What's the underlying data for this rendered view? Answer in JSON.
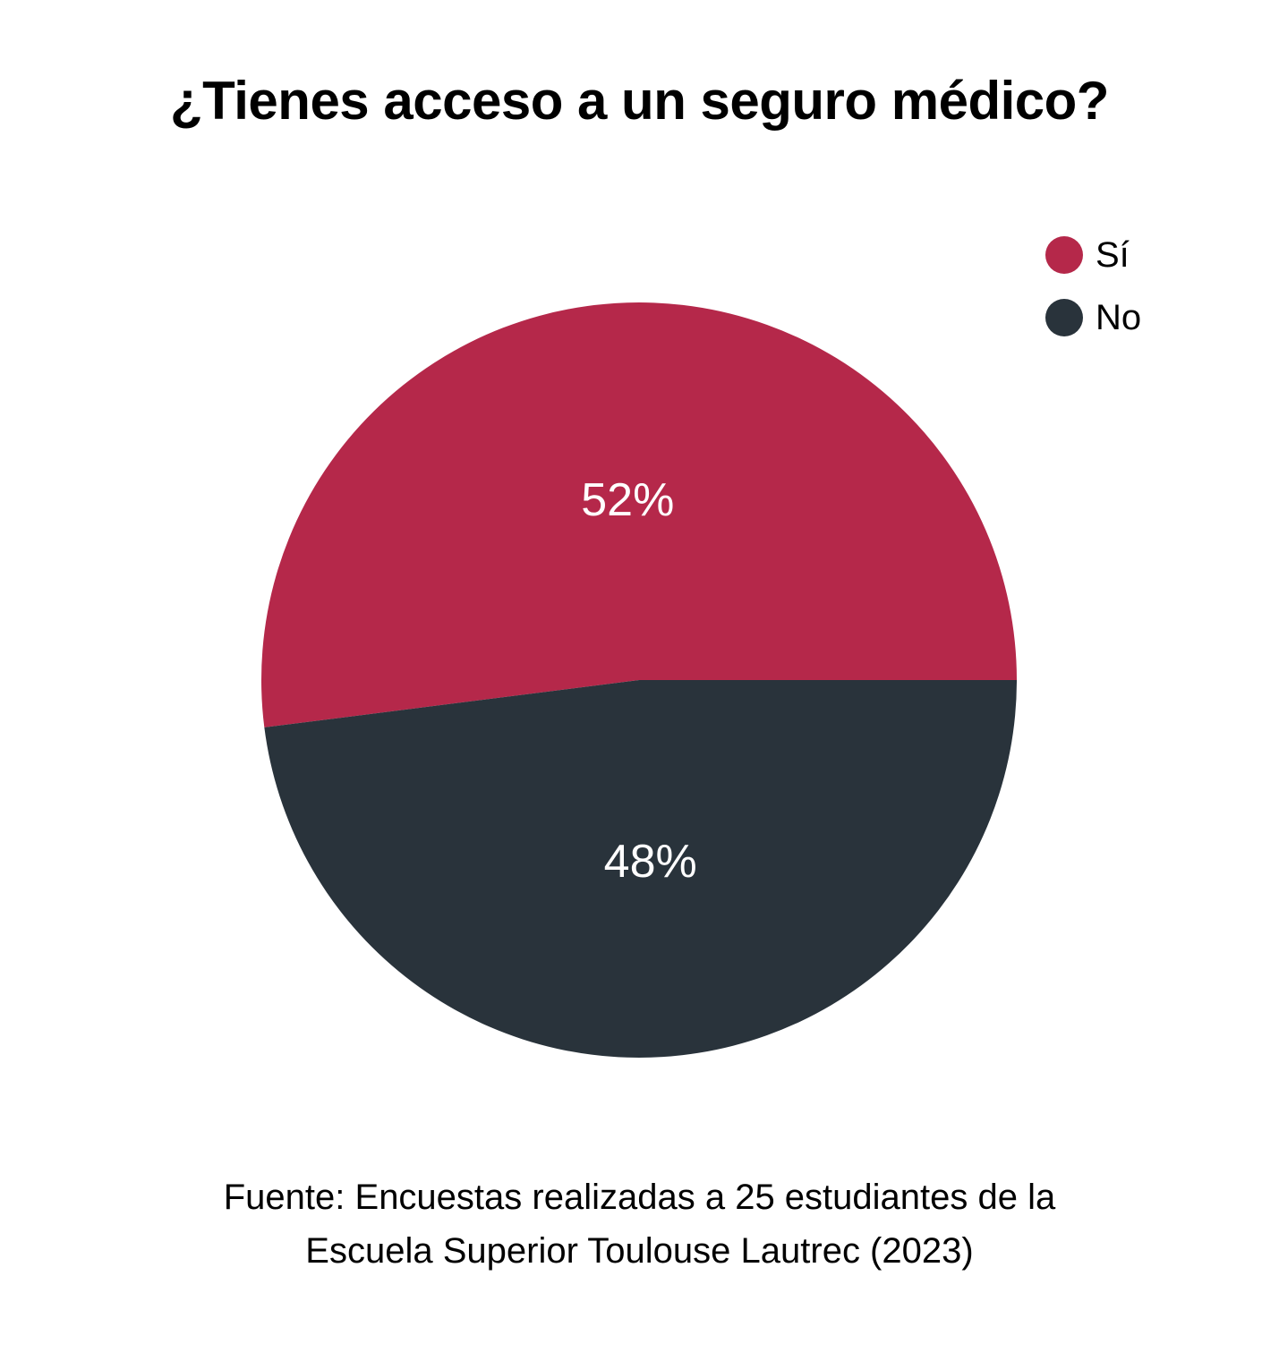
{
  "title": "¿Tienes acceso a un seguro médico?",
  "chart_data": {
    "type": "pie",
    "categories": [
      "Sí",
      "No"
    ],
    "values": [
      52,
      48
    ],
    "data_labels": [
      "52%",
      "48%"
    ],
    "colors": [
      "#b5284a",
      "#29333b"
    ],
    "legend_position": "top-right"
  },
  "footer": {
    "line1": "Fuente: Encuestas realizadas a 25 estudiantes de la",
    "line2": "Escuela Superior Toulouse Lautrec (2023)"
  }
}
